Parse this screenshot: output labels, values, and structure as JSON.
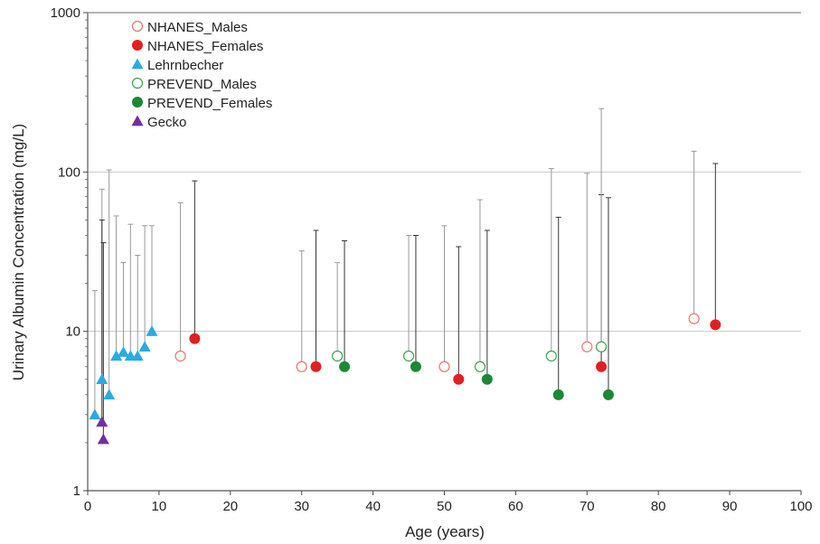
{
  "chart_data": {
    "type": "scatter",
    "xlabel": "Age (years)",
    "ylabel": "Urinary Albumin Concentration (mg/L)",
    "xlim": [
      0,
      100
    ],
    "ylim": [
      1,
      1000
    ],
    "yscale": "log",
    "x_ticks": [
      "0",
      "10",
      "20",
      "30",
      "40",
      "50",
      "60",
      "70",
      "80",
      "90",
      "100"
    ],
    "y_ticks": [
      "1",
      "10",
      "100",
      "1000"
    ],
    "grid": "horizontal",
    "legend_position": "top-left",
    "series": [
      {
        "name": "NHANES_Males",
        "marker": "circle-open",
        "color": "#e8736b",
        "errorbar_color": "#999999",
        "points": [
          {
            "x": 13,
            "y": 7,
            "upper": 64
          },
          {
            "x": 30,
            "y": 6,
            "upper": 32
          },
          {
            "x": 50,
            "y": 6,
            "upper": 46
          },
          {
            "x": 70,
            "y": 8,
            "upper": 98
          },
          {
            "x": 85,
            "y": 12,
            "upper": 135
          }
        ]
      },
      {
        "name": "NHANES_Females",
        "marker": "circle-filled",
        "color": "#e02020",
        "errorbar_color": "#333333",
        "points": [
          {
            "x": 15,
            "y": 9,
            "upper": 88
          },
          {
            "x": 32,
            "y": 6,
            "upper": 43
          },
          {
            "x": 52,
            "y": 5,
            "upper": 34
          },
          {
            "x": 72,
            "y": 6,
            "upper": 72
          },
          {
            "x": 88,
            "y": 11,
            "upper": 113
          }
        ]
      },
      {
        "name": "Lehrnbecher",
        "marker": "triangle-filled",
        "color": "#29abe2",
        "errorbar_color": "#999999",
        "points": [
          {
            "x": 1,
            "y": 3,
            "upper": 18
          },
          {
            "x": 2,
            "y": 5,
            "upper": 78
          },
          {
            "x": 3,
            "y": 4,
            "upper": 103
          },
          {
            "x": 4,
            "y": 7,
            "upper": 53
          },
          {
            "x": 5,
            "y": 7.4,
            "upper": 27
          },
          {
            "x": 6,
            "y": 7,
            "upper": 47
          },
          {
            "x": 7,
            "y": 7,
            "upper": 30
          },
          {
            "x": 8,
            "y": 8,
            "upper": 46
          },
          {
            "x": 9,
            "y": 10,
            "upper": 46
          }
        ]
      },
      {
        "name": "PREVEND_Males",
        "marker": "circle-open",
        "color": "#3ca04a",
        "errorbar_color": "#999999",
        "points": [
          {
            "x": 35,
            "y": 7,
            "upper": 27
          },
          {
            "x": 45,
            "y": 7,
            "upper": 40
          },
          {
            "x": 55,
            "y": 6,
            "upper": 67
          },
          {
            "x": 65,
            "y": 7,
            "upper": 105
          },
          {
            "x": 72,
            "y": 8,
            "upper": 250
          }
        ]
      },
      {
        "name": "PREVEND_Females",
        "marker": "circle-filled",
        "color": "#1a8a32",
        "errorbar_color": "#333333",
        "points": [
          {
            "x": 36,
            "y": 6,
            "upper": 37
          },
          {
            "x": 46,
            "y": 6,
            "upper": 40
          },
          {
            "x": 56,
            "y": 5,
            "upper": 43
          },
          {
            "x": 66,
            "y": 4,
            "upper": 52
          },
          {
            "x": 73,
            "y": 4,
            "upper": 69
          }
        ]
      },
      {
        "name": "Gecko",
        "marker": "triangle-filled",
        "color": "#7030a0",
        "errorbar_color": "#333333",
        "points": [
          {
            "x": 2,
            "y": 2.7,
            "upper": 50
          },
          {
            "x": 2.2,
            "y": 2.1,
            "upper": 36
          }
        ]
      }
    ]
  }
}
